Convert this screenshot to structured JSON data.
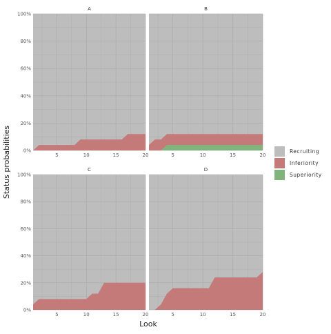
{
  "chart_data": {
    "type": "area",
    "xlabel": "Look",
    "ylabel": "Status probabilities",
    "xlim": [
      1,
      20
    ],
    "ylim": [
      0,
      1
    ],
    "x_ticks": [
      5,
      10,
      15,
      20
    ],
    "x_tick_labels": [
      "5",
      "10",
      "15",
      "20"
    ],
    "y_ticks": [
      0,
      0.2,
      0.4,
      0.6,
      0.8,
      1.0
    ],
    "y_tick_labels": [
      "0%",
      "20%",
      "40%",
      "60%",
      "80%",
      "100%"
    ],
    "legend": {
      "placement": "right",
      "entries": [
        {
          "name": "Recruiting",
          "color": "#bdbdbd"
        },
        {
          "name": "Inferiority",
          "color": "#c47a78"
        },
        {
          "name": "Superiority",
          "color": "#7fb47c"
        }
      ]
    },
    "x": [
      1,
      2,
      3,
      4,
      5,
      6,
      7,
      8,
      9,
      10,
      11,
      12,
      13,
      14,
      15,
      16,
      17,
      18,
      19,
      20
    ],
    "panels": [
      {
        "title": "A",
        "series": [
          {
            "name": "Superiority",
            "values": [
              0,
              0,
              0,
              0,
              0,
              0,
              0,
              0,
              0,
              0,
              0,
              0,
              0,
              0,
              0,
              0,
              0,
              0,
              0,
              0
            ]
          },
          {
            "name": "Inferiority",
            "values": [
              0,
              0.04,
              0.04,
              0.04,
              0.04,
              0.04,
              0.04,
              0.04,
              0.08,
              0.08,
              0.08,
              0.08,
              0.08,
              0.08,
              0.08,
              0.08,
              0.12,
              0.12,
              0.12,
              0.12
            ]
          }
        ]
      },
      {
        "title": "B",
        "series": [
          {
            "name": "Superiority",
            "values": [
              0,
              0,
              0,
              0.04,
              0.04,
              0.04,
              0.04,
              0.04,
              0.04,
              0.04,
              0.04,
              0.04,
              0.04,
              0.04,
              0.04,
              0.04,
              0.04,
              0.04,
              0.04,
              0.04
            ]
          },
          {
            "name": "Inferiority",
            "values": [
              0.04,
              0.08,
              0.08,
              0.08,
              0.08,
              0.08,
              0.08,
              0.08,
              0.08,
              0.08,
              0.08,
              0.08,
              0.08,
              0.08,
              0.08,
              0.08,
              0.08,
              0.08,
              0.08,
              0.08
            ]
          }
        ]
      },
      {
        "title": "C",
        "series": [
          {
            "name": "Superiority",
            "values": [
              0,
              0,
              0,
              0,
              0,
              0,
              0,
              0,
              0,
              0,
              0,
              0,
              0,
              0,
              0,
              0,
              0,
              0,
              0,
              0
            ]
          },
          {
            "name": "Inferiority",
            "values": [
              0.04,
              0.08,
              0.08,
              0.08,
              0.08,
              0.08,
              0.08,
              0.08,
              0.08,
              0.08,
              0.12,
              0.12,
              0.2,
              0.2,
              0.2,
              0.2,
              0.2,
              0.2,
              0.2,
              0.2
            ]
          }
        ]
      },
      {
        "title": "D",
        "series": [
          {
            "name": "Superiority",
            "values": [
              0,
              0,
              0,
              0,
              0,
              0,
              0,
              0,
              0,
              0,
              0,
              0,
              0,
              0,
              0,
              0,
              0,
              0,
              0,
              0
            ]
          },
          {
            "name": "Inferiority",
            "values": [
              0,
              0,
              0.04,
              0.12,
              0.16,
              0.16,
              0.16,
              0.16,
              0.16,
              0.16,
              0.16,
              0.24,
              0.24,
              0.24,
              0.24,
              0.24,
              0.24,
              0.24,
              0.24,
              0.28
            ]
          }
        ]
      }
    ]
  }
}
